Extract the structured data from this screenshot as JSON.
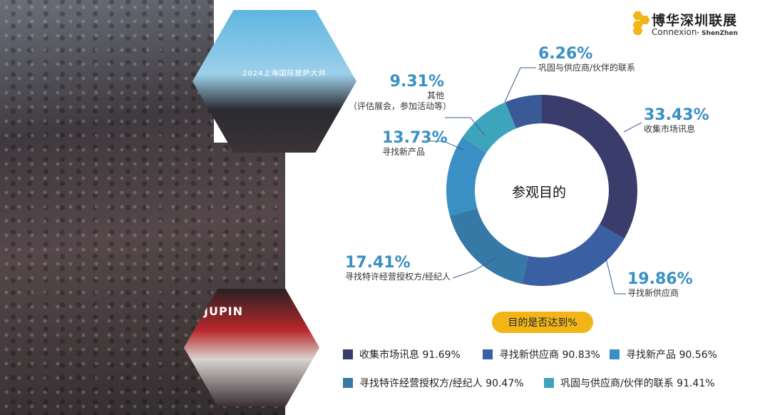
{
  "photos": {
    "top_banner_text": "2024上海国际披萨大师",
    "bottom_sign_text": "JUPIN"
  },
  "logo": {
    "cn": "博华深圳联展",
    "en_main": "Connexion",
    "en_sub": "· ShenZhen"
  },
  "colors": {
    "s1": "#3a3c6b",
    "s2": "#3b5fa3",
    "s3": "#3a8fc4",
    "s4": "#3679a6",
    "s5": "#3ea4bb",
    "s6": "#3a5a97",
    "callout_text": "#3a8fc4",
    "goal_pill": "#f2b518"
  },
  "chart_data": {
    "type": "pie",
    "donut": true,
    "title": "参观目的",
    "slices": [
      {
        "label": "收集市场讯息",
        "value": 33.43,
        "pct_text": "33.43%"
      },
      {
        "label": "寻找新供应商",
        "value": 19.86,
        "pct_text": "19.86%"
      },
      {
        "label": "寻找特许经营授权方/经纪人",
        "value": 17.41,
        "pct_text": "17.41%"
      },
      {
        "label": "寻找新产品",
        "value": 13.73,
        "pct_text": "13.73%"
      },
      {
        "label": "其他",
        "label2": "（评估展会，参加活动等）",
        "value": 9.31,
        "pct_text": "9.31%"
      },
      {
        "label": "巩固与供应商/伙伴的联系",
        "value": 6.26,
        "pct_text": "6.26%"
      }
    ],
    "goal_title": "目的是否达到%",
    "goal_items": [
      {
        "text": "收集市场讯息 91.69%",
        "value": 91.69
      },
      {
        "text": "寻找新供应商 90.83%",
        "value": 90.83
      },
      {
        "text": "寻找新产品 90.56%",
        "value": 90.56
      },
      {
        "text": "寻找特许经营授权方/经纪人 90.47%",
        "value": 90.47
      },
      {
        "text": "巩固与供应商/伙伴的联系 91.41%",
        "value": 91.41
      }
    ]
  }
}
